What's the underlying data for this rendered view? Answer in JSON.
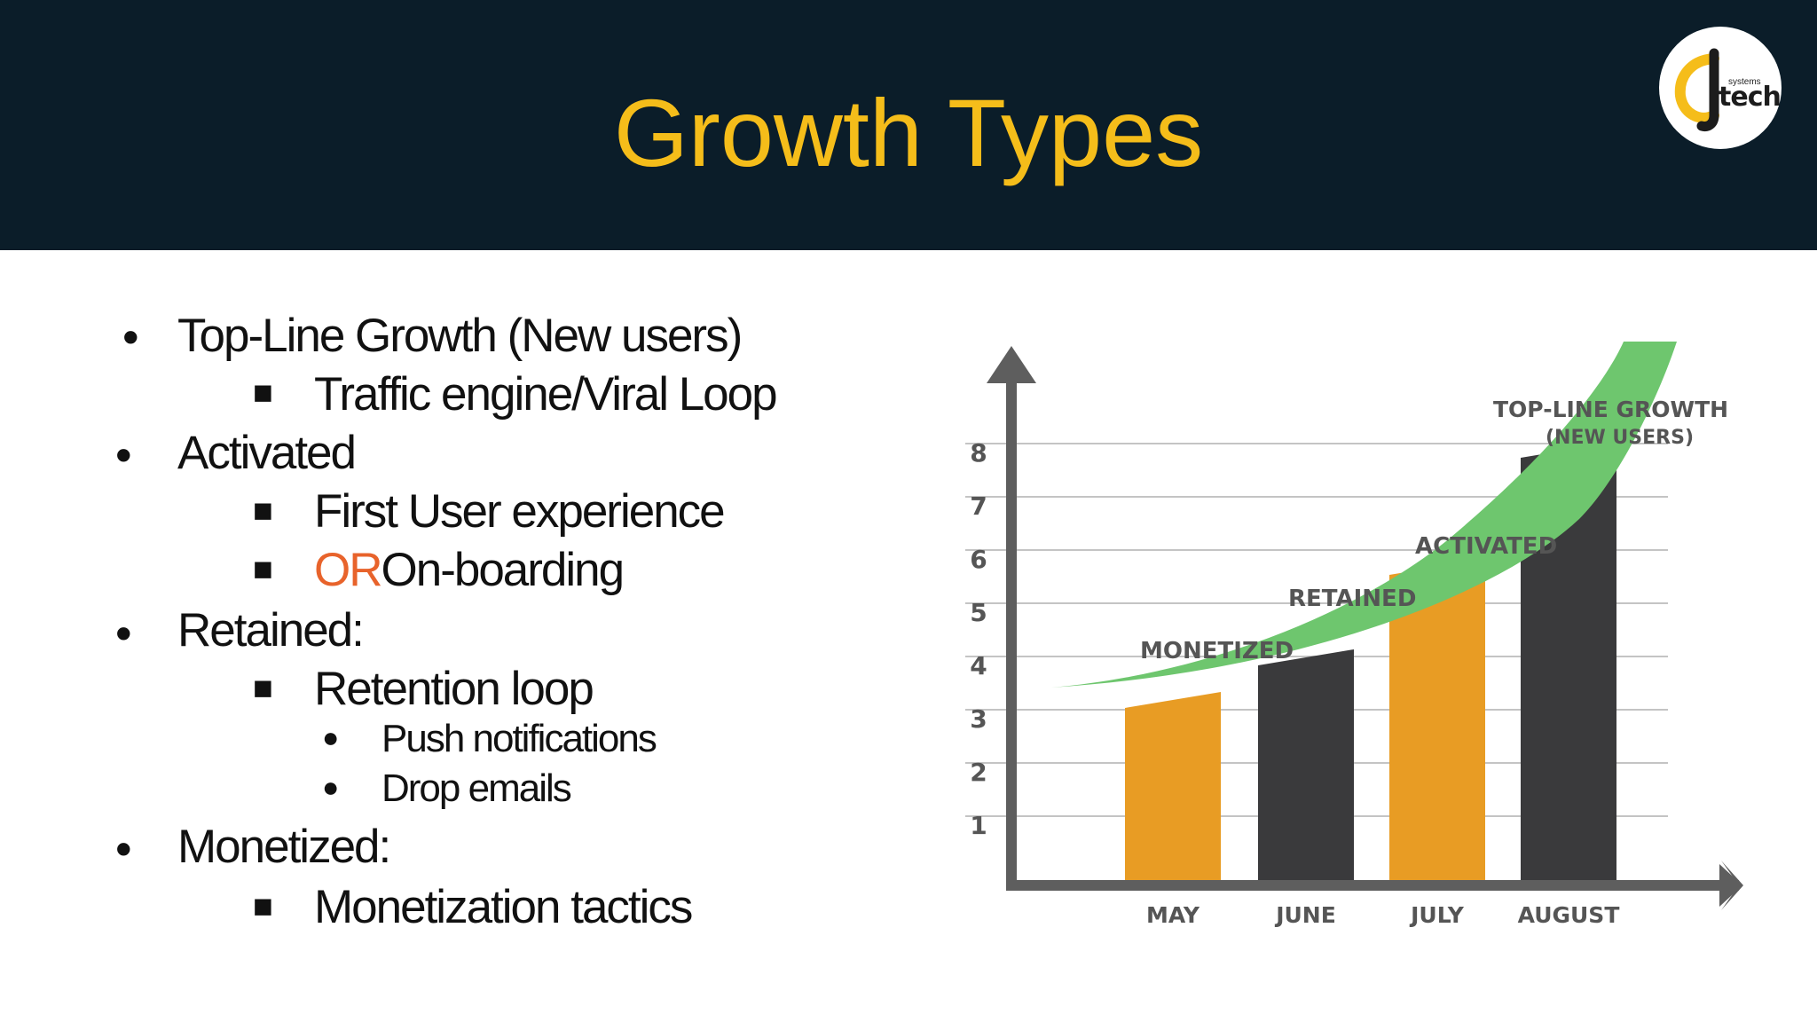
{
  "slide": {
    "title": "Growth Types",
    "logo": {
      "top": "systems",
      "main": "tech"
    }
  },
  "bullets": [
    {
      "level": 1,
      "text": "Top-Line Growth (New users)"
    },
    {
      "level": 2,
      "text": "Traffic engine/Viral Loop"
    },
    {
      "level": 1,
      "text": "Activated"
    },
    {
      "level": 2,
      "text": "First User experience"
    },
    {
      "level": 2,
      "accent": "OR",
      "text": "On-boarding"
    },
    {
      "level": 1,
      "text": "Retained:"
    },
    {
      "level": 2,
      "text": "Retention loop"
    },
    {
      "level": 3,
      "text": "Push notifications"
    },
    {
      "level": 3,
      "text": "Drop emails"
    },
    {
      "level": 1,
      "text": "Monetized:"
    },
    {
      "level": 2,
      "text": "Monetization tactics"
    }
  ],
  "bullet_markers": {
    "level1": "•",
    "level2": "■",
    "level3": "●"
  },
  "colors": {
    "header_bg": "#0b1d29",
    "title": "#f5bd1a",
    "accent_text": "#e8632b",
    "bar_orange": "#e89c24",
    "bar_dark": "#3a3a3c",
    "growth_curve": "#6ec66e",
    "axis": "#5e5e5e"
  },
  "chart_data": {
    "type": "bar",
    "categories": [
      "MAY",
      "JUNE",
      "JULY",
      "AUGUST"
    ],
    "values": [
      3.4,
      4.2,
      5.9,
      8.1
    ],
    "bar_colors": [
      "#e89c24",
      "#3a3a3c",
      "#e89c24",
      "#3a3a3c"
    ],
    "ylim": [
      0,
      9
    ],
    "yticks": [
      1,
      2,
      3,
      4,
      5,
      6,
      7,
      8
    ],
    "grid": true,
    "annotations": [
      "MONETIZED",
      "RETAINED",
      "ACTIVATED",
      "TOP-LINE GROWTH",
      "(NEW USERS)"
    ],
    "curve": "growth arrow rising over the bars"
  }
}
